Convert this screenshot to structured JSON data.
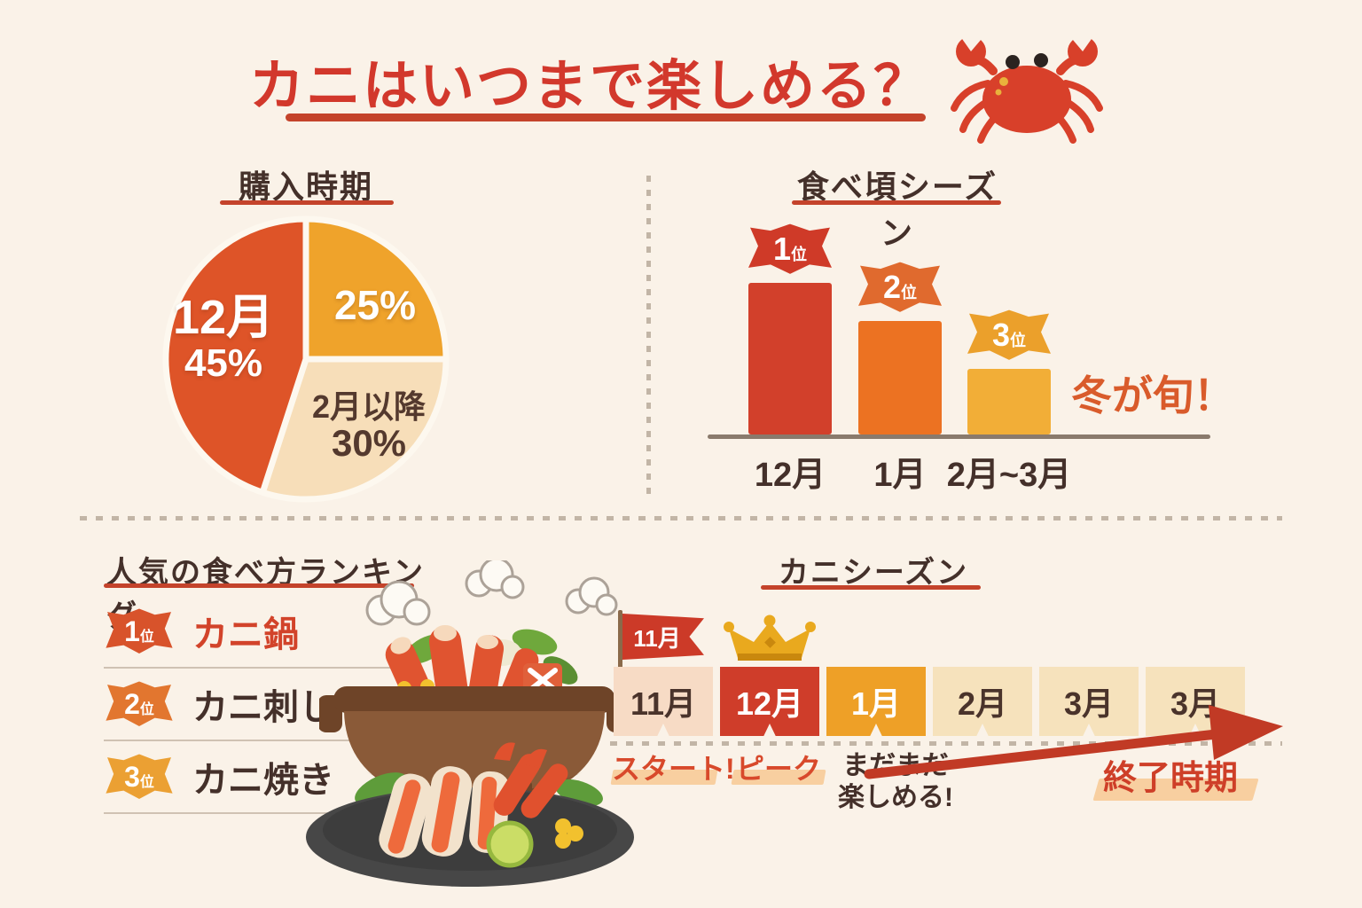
{
  "page": {
    "bg": "#FAF2E8",
    "title": "カニはいつまで楽しめる？",
    "title_color": "#D2382C",
    "underline_color": "#C4432B",
    "heading_color": "#44302A"
  },
  "sections": {
    "purchase": {
      "heading": "購入時期"
    },
    "season": {
      "heading": "食べ頃シーズン"
    },
    "ranking": {
      "heading": "人気の食べ方ランキング",
      "items": [
        {
          "rank": "1",
          "unit": "位",
          "label": "カニ鍋",
          "badge_color": "#D8532B",
          "label_color": "#D2432A"
        },
        {
          "rank": "2",
          "unit": "位",
          "label": "カニ刺し",
          "badge_color": "#E2762F",
          "label_color": "#44302A"
        },
        {
          "rank": "3",
          "unit": "位",
          "label": "カニ焼き",
          "badge_color": "#EBA033",
          "label_color": "#44302A"
        }
      ]
    },
    "timeline": {
      "heading": "カニシーズン",
      "flag_label": "11月",
      "cells": [
        {
          "label": "11月",
          "bg": "#F7DBC5",
          "text": "#4A332B",
          "crown": false
        },
        {
          "label": "12月",
          "bg": "#CF3D2A",
          "text": "#FFFFFF",
          "crown": true
        },
        {
          "label": "1月",
          "bg": "#EEA027",
          "text": "#FFFFFF",
          "crown": false
        },
        {
          "label": "2月",
          "bg": "#F6E2BC",
          "text": "#4A332B",
          "crown": false
        },
        {
          "label": "3月",
          "bg": "#F6E2BC",
          "text": "#4A332B",
          "crown": false
        },
        {
          "label": "3月",
          "bg": "#F6E2BC",
          "text": "#4A332B",
          "crown": false
        }
      ],
      "markers": {
        "start": "スタート!",
        "peak": "ピーク",
        "enjoy_line1": "まだまだ",
        "enjoy_line2": "楽しめる!",
        "end": "終了時期",
        "marker_color": "#D8492B",
        "highlight_color": "#F8CFA0",
        "arrow_color": "#C13A25"
      }
    }
  },
  "chart_data": [
    {
      "type": "pie",
      "title": "購入時期",
      "start_angle_deg": 0,
      "clockwise": true,
      "slices": [
        {
          "label": "25%",
          "sublabel": "",
          "value": 25,
          "color": "#EFA32B",
          "text_color": "#FFFFFF"
        },
        {
          "label": "2月以降",
          "sublabel": "30%",
          "value": 30,
          "color": "#F7DEB9",
          "text_color": "#54392E"
        },
        {
          "label": "12月",
          "sublabel": "45%",
          "value": 45,
          "color": "#DE5428",
          "text_color": "#FFFFFF"
        }
      ]
    },
    {
      "type": "bar",
      "title": "食べ頃シーズン",
      "categories": [
        "12月",
        "1月",
        "2月~3月"
      ],
      "values": [
        100,
        75,
        43
      ],
      "ylim": [
        0,
        100
      ],
      "value_unit": "relative_height_percent",
      "ranks": [
        {
          "num": "1",
          "unit": "位"
        },
        {
          "num": "2",
          "unit": "位"
        },
        {
          "num": "3",
          "unit": "位"
        }
      ],
      "bar_colors": [
        "#D2402B",
        "#EC7222",
        "#F2AE37"
      ],
      "badge_colors": [
        "#CF3A28",
        "#E06A2E",
        "#EBA02B"
      ],
      "annotation": "冬が旬！",
      "annotation_color": "#D95B2B",
      "axis_color": "#8A7A6C",
      "grid": false,
      "legend": false
    }
  ]
}
